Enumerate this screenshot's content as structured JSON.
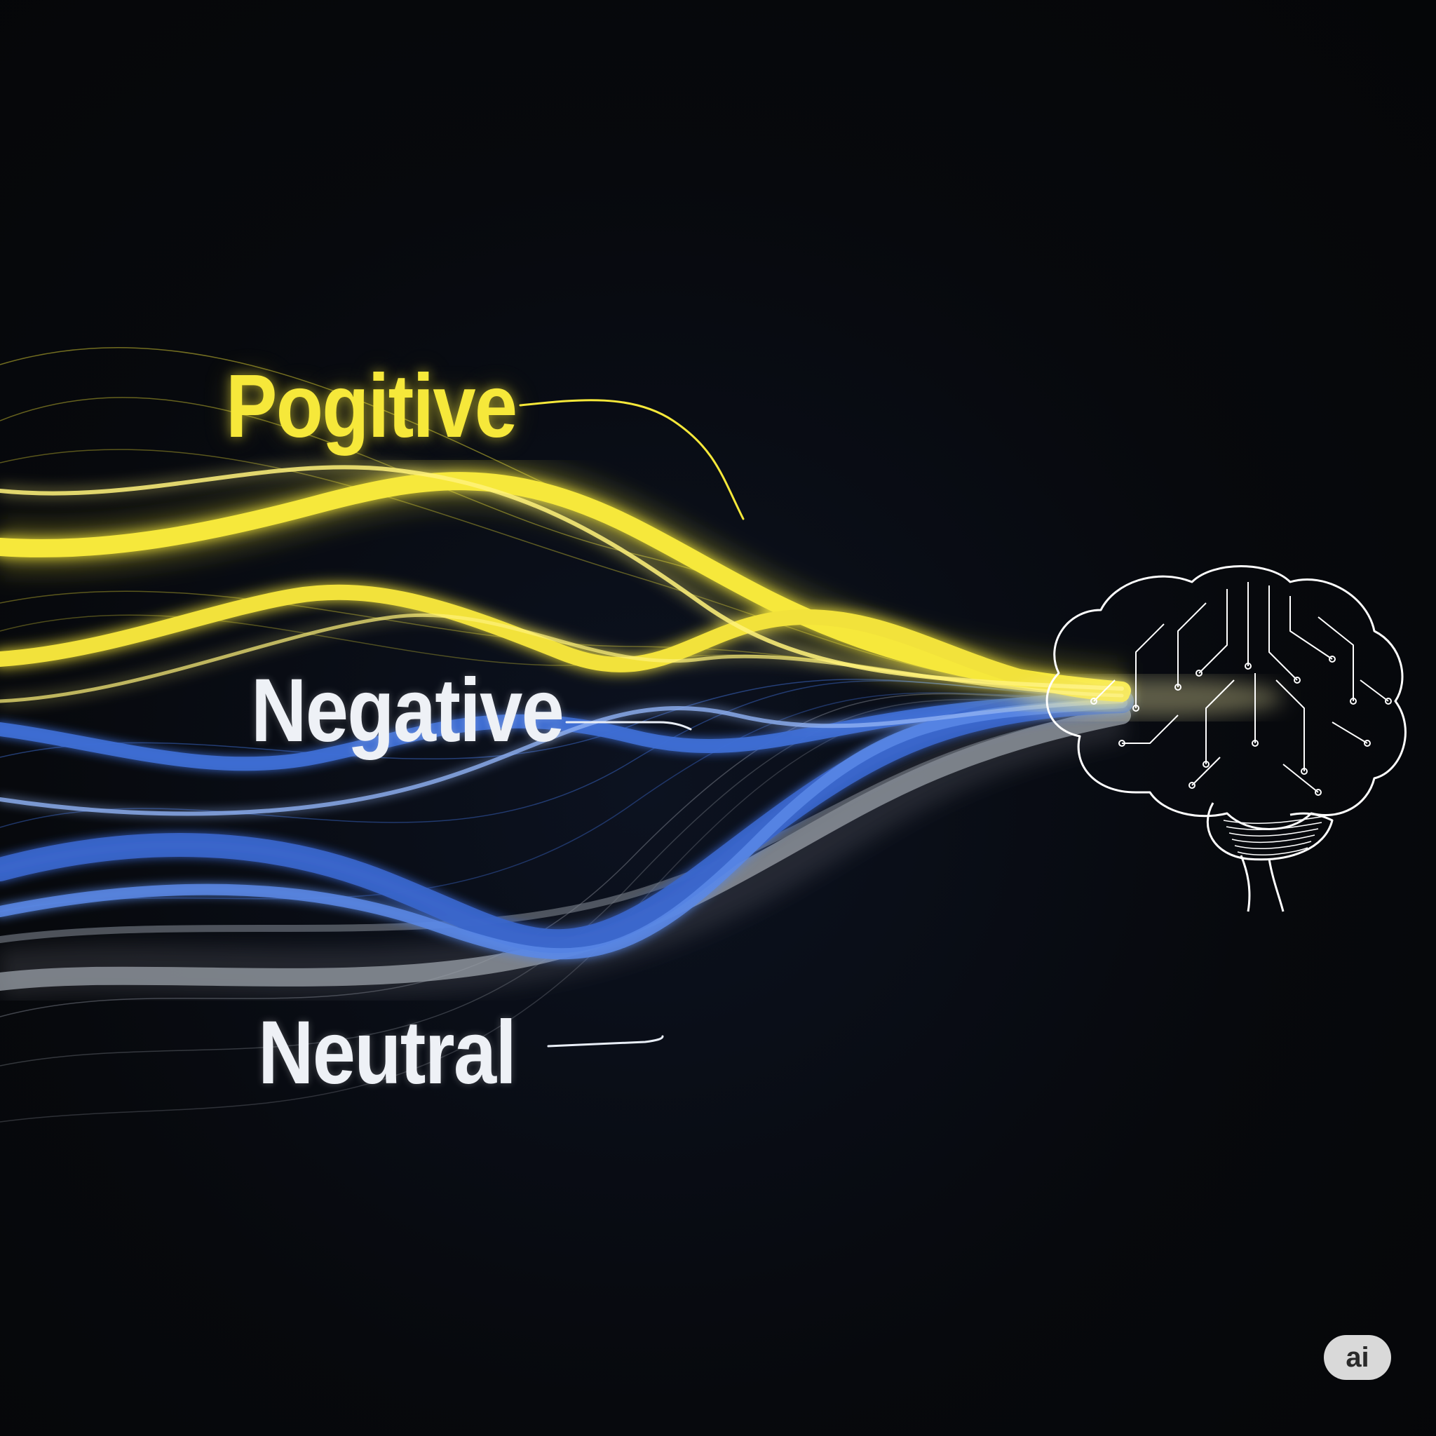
{
  "labels": {
    "positive": "Pogitive",
    "negative": "Negative",
    "neutral": "Neutral"
  },
  "badge": {
    "text": "ai"
  },
  "colors": {
    "background": "#07090d",
    "positive": "#f6e83a",
    "negative": "#3f6fd6",
    "neutral": "#8a8f98",
    "label_text": "#eef1f6",
    "brain_outline": "#ffffff",
    "badge": "#d9d9d9"
  },
  "icons": {
    "brain": "circuit-brain-icon",
    "badge": "ai-badge-icon"
  }
}
